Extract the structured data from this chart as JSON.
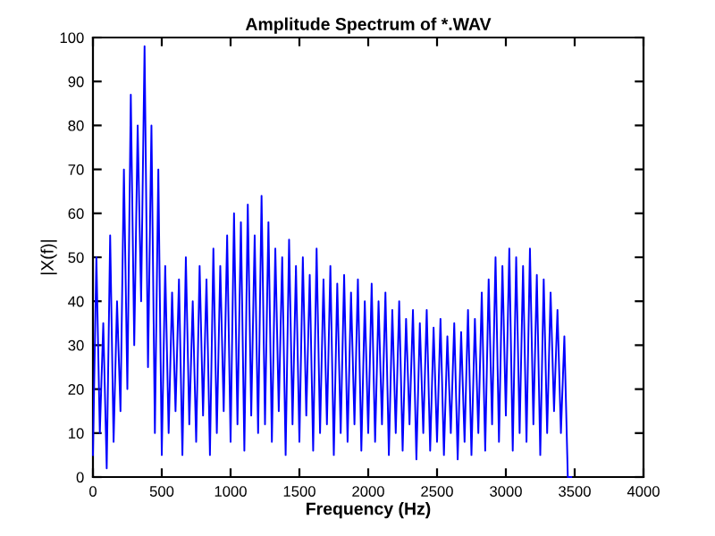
{
  "chart_data": {
    "type": "line",
    "title": "Amplitude Spectrum of *.WAV",
    "xlabel": "Frequency (Hz)",
    "ylabel": "|X(f)|",
    "xlim": [
      0,
      4000
    ],
    "ylim": [
      0,
      100
    ],
    "xticks": [
      0,
      500,
      1000,
      1500,
      2000,
      2500,
      3000,
      3500,
      4000
    ],
    "yticks": [
      0,
      10,
      20,
      30,
      40,
      50,
      60,
      70,
      80,
      90,
      100
    ],
    "grid": false,
    "legend": false,
    "series": [
      {
        "color": "#0000ff",
        "x": [
          0,
          25,
          50,
          75,
          100,
          125,
          150,
          175,
          200,
          225,
          250,
          275,
          300,
          325,
          350,
          375,
          400,
          425,
          450,
          475,
          500,
          525,
          550,
          575,
          600,
          625,
          650,
          675,
          700,
          725,
          750,
          775,
          800,
          825,
          850,
          875,
          900,
          925,
          950,
          975,
          1000,
          1025,
          1050,
          1075,
          1100,
          1125,
          1150,
          1175,
          1200,
          1225,
          1250,
          1275,
          1300,
          1325,
          1350,
          1375,
          1400,
          1425,
          1450,
          1475,
          1500,
          1525,
          1550,
          1575,
          1600,
          1625,
          1650,
          1675,
          1700,
          1725,
          1750,
          1775,
          1800,
          1825,
          1850,
          1875,
          1900,
          1925,
          1950,
          1975,
          2000,
          2025,
          2050,
          2075,
          2100,
          2125,
          2150,
          2175,
          2200,
          2225,
          2250,
          2275,
          2300,
          2325,
          2350,
          2375,
          2400,
          2425,
          2450,
          2475,
          2500,
          2525,
          2550,
          2575,
          2600,
          2625,
          2650,
          2675,
          2700,
          2725,
          2750,
          2775,
          2800,
          2825,
          2850,
          2875,
          2900,
          2925,
          2950,
          2975,
          3000,
          3025,
          3050,
          3075,
          3100,
          3125,
          3150,
          3175,
          3200,
          3225,
          3250,
          3275,
          3300,
          3325,
          3350,
          3375,
          3400,
          3425,
          3450,
          3475
        ],
        "values": [
          5,
          50,
          10,
          35,
          2,
          55,
          8,
          40,
          15,
          70,
          20,
          87,
          30,
          80,
          40,
          98,
          25,
          80,
          10,
          70,
          5,
          48,
          10,
          42,
          15,
          45,
          5,
          50,
          12,
          40,
          8,
          48,
          14,
          45,
          5,
          52,
          10,
          48,
          15,
          55,
          8,
          60,
          12,
          58,
          6,
          62,
          14,
          55,
          10,
          64,
          12,
          58,
          8,
          52,
          15,
          50,
          5,
          54,
          12,
          48,
          8,
          50,
          14,
          46,
          6,
          52,
          10,
          45,
          12,
          48,
          5,
          44,
          10,
          46,
          8,
          42,
          12,
          45,
          6,
          40,
          10,
          44,
          8,
          40,
          12,
          42,
          5,
          38,
          10,
          40,
          6,
          36,
          12,
          38,
          4,
          35,
          10,
          38,
          6,
          34,
          8,
          36,
          5,
          32,
          10,
          35,
          4,
          33,
          8,
          38,
          5,
          36,
          10,
          42,
          6,
          45,
          12,
          50,
          8,
          48,
          14,
          52,
          6,
          50,
          10,
          48,
          8,
          52,
          12,
          46,
          5,
          45,
          10,
          42,
          15,
          38,
          10,
          32,
          0,
          0
        ]
      }
    ]
  }
}
